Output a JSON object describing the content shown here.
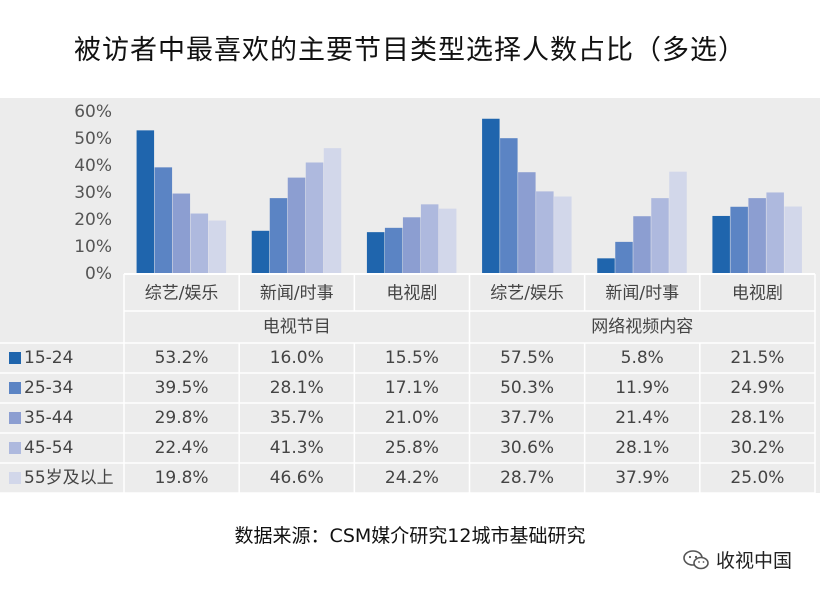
{
  "title": "被访者中最喜欢的主要节目类型选择人数占比（多选）",
  "source": "数据来源：CSM媒介研究12城市基础研究",
  "brand": {
    "name": "收视中国",
    "icon": "wechat-logo-icon"
  },
  "colors": {
    "series": [
      "#1f65ad",
      "#5b84c4",
      "#8c9ed1",
      "#aeb9de",
      "#d2d7ea"
    ],
    "panel": "#ececec",
    "grid_line": "#ffffff"
  },
  "chart_data": {
    "type": "bar",
    "title": "被访者中最喜欢的主要节目类型选择人数占比（多选）",
    "groups": [
      {
        "label": "电视节目",
        "categories": [
          "综艺/娱乐",
          "新闻/时事",
          "电视剧"
        ]
      },
      {
        "label": "网络视频内容",
        "categories": [
          "综艺/娱乐",
          "新闻/时事",
          "电视剧"
        ]
      }
    ],
    "categories": [
      "综艺/娱乐",
      "新闻/时事",
      "电视剧",
      "综艺/娱乐",
      "新闻/时事",
      "电视剧"
    ],
    "y_ticks": [
      "0%",
      "10%",
      "20%",
      "30%",
      "40%",
      "50%",
      "60%"
    ],
    "ylim": [
      0,
      60
    ],
    "legend_position": "data table rows",
    "series": [
      {
        "name": "15-24",
        "values": [
          53.2,
          16.0,
          15.5,
          57.5,
          5.8,
          21.5
        ],
        "labels": [
          "53.2%",
          "16.0%",
          "15.5%",
          "57.5%",
          "5.8%",
          "21.5%"
        ]
      },
      {
        "name": "25-34",
        "values": [
          39.5,
          28.1,
          17.1,
          50.3,
          11.9,
          24.9
        ],
        "labels": [
          "39.5%",
          "28.1%",
          "17.1%",
          "50.3%",
          "11.9%",
          "24.9%"
        ]
      },
      {
        "name": "35-44",
        "values": [
          29.8,
          35.7,
          21.0,
          37.7,
          21.4,
          28.1
        ],
        "labels": [
          "29.8%",
          "35.7%",
          "21.0%",
          "37.7%",
          "21.4%",
          "28.1%"
        ]
      },
      {
        "name": "45-54",
        "values": [
          22.4,
          41.3,
          25.8,
          30.6,
          28.1,
          30.2
        ],
        "labels": [
          "22.4%",
          "41.3%",
          "25.8%",
          "30.6%",
          "28.1%",
          "30.2%"
        ]
      },
      {
        "name": "55岁及以上",
        "values": [
          19.8,
          46.6,
          24.2,
          28.7,
          37.9,
          25.0
        ],
        "labels": [
          "19.8%",
          "46.6%",
          "24.2%",
          "28.7%",
          "37.9%",
          "25.0%"
        ]
      }
    ]
  }
}
